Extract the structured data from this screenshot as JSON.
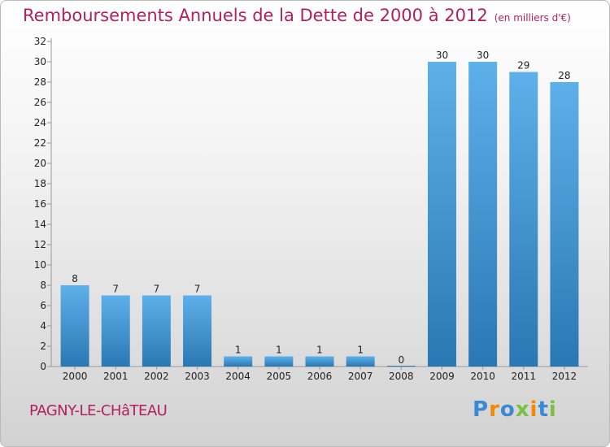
{
  "header": {
    "title": "Remboursements Annuels de la Dette de 2000 à 2012",
    "unit": "(en milliers d'€)"
  },
  "footer": {
    "place": "PAGNY-LE-CHâTEAU",
    "logo": [
      "P",
      "r",
      "o",
      "x",
      "i",
      "t",
      "i"
    ]
  },
  "colors": {
    "title": "#b31f5b",
    "bar_top": "#5eb0ea",
    "bar_bottom": "#2a78b3",
    "logo": [
      "#3a88d6",
      "#f08a00",
      "#3a88d6",
      "#7ac143",
      "#f08a00",
      "#3a88d6",
      "#7ac143"
    ]
  },
  "chart_data": {
    "type": "bar",
    "title": "Remboursements Annuels de la Dette de 2000 à 2012",
    "xlabel": "",
    "ylabel": "",
    "categories": [
      "2000",
      "2001",
      "2002",
      "2003",
      "2004",
      "2005",
      "2006",
      "2007",
      "2008",
      "2009",
      "2010",
      "2011",
      "2012"
    ],
    "values": [
      8,
      7,
      7,
      7,
      1,
      1,
      1,
      1,
      0,
      30,
      30,
      29,
      28
    ],
    "ylim": [
      0,
      32
    ],
    "yticks": [
      0,
      2,
      4,
      6,
      8,
      10,
      12,
      14,
      16,
      18,
      20,
      22,
      24,
      26,
      28,
      30,
      32
    ],
    "grid": false,
    "legend": "none"
  }
}
